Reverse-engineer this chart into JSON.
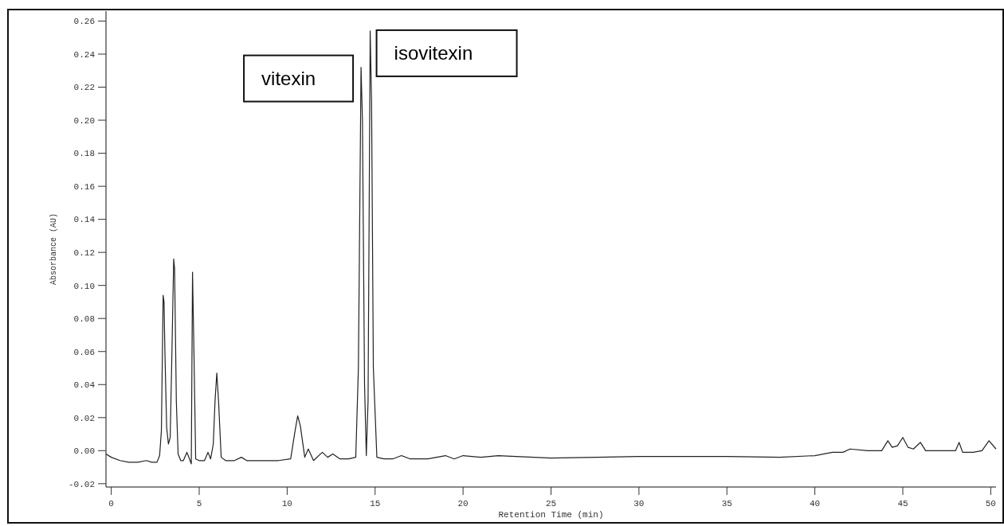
{
  "chart_data": {
    "type": "line",
    "xlabel": "Retention Time (min)",
    "ylabel": "Absorbance (AU)",
    "xlim": [
      -0.3,
      50.3
    ],
    "ylim": [
      -0.022,
      0.266
    ],
    "xticks": [
      0,
      5,
      10,
      15,
      20,
      25,
      30,
      35,
      40,
      45,
      50
    ],
    "yticks": [
      -0.02,
      {
        "value": 0,
        "label": "0.00"
      },
      0.02,
      0.04,
      0.06,
      0.08,
      {
        "value": 0.1,
        "label": "0.10"
      },
      0.12,
      0.14,
      0.16,
      0.18,
      {
        "value": 0.2,
        "label": "0.20"
      },
      0.22,
      0.24,
      0.26
    ],
    "grid": false,
    "marker": "none",
    "line_style": "solid",
    "series": [
      {
        "color": "#222222",
        "x": [
          -0.3,
          0,
          0.5,
          1,
          1.5,
          2,
          2.3,
          2.6,
          2.75,
          2.85,
          2.95,
          3.0,
          3.05,
          3.15,
          3.25,
          3.35,
          3.45,
          3.55,
          3.6,
          3.7,
          3.8,
          3.95,
          4.1,
          4.3,
          4.45,
          4.55,
          4.62,
          4.7,
          4.8,
          5.0,
          5.3,
          5.5,
          5.65,
          5.8,
          5.9,
          6.0,
          6.1,
          6.25,
          6.5,
          7.0,
          7.4,
          7.7,
          8.5,
          9.5,
          10.2,
          10.45,
          10.6,
          10.75,
          11.0,
          11.2,
          11.5,
          12.0,
          12.3,
          12.6,
          13.0,
          13.5,
          13.9,
          14.05,
          14.2,
          14.28,
          14.4,
          14.5,
          14.6,
          14.72,
          14.8,
          14.9,
          15.1,
          15.5,
          16.0,
          16.5,
          17.0,
          18.0,
          19.0,
          19.5,
          20.0,
          21.0,
          22.0,
          25.0,
          30.0,
          35.0,
          38.0,
          40.0,
          41.0,
          41.6,
          42.0,
          43.0,
          43.8,
          44.15,
          44.4,
          44.7,
          45.0,
          45.3,
          45.6,
          46.0,
          46.3,
          47.0,
          48.0,
          48.2,
          48.4,
          49.0,
          49.5,
          49.9,
          50.3
        ],
        "values": [
          -0.002,
          -0.004,
          -0.006,
          -0.007,
          -0.007,
          -0.006,
          -0.007,
          -0.007,
          -0.003,
          0.012,
          0.094,
          0.09,
          0.06,
          0.014,
          0.004,
          0.008,
          0.06,
          0.116,
          0.11,
          0.03,
          -0.002,
          -0.006,
          -0.006,
          -0.001,
          -0.005,
          -0.008,
          0.108,
          0.06,
          -0.005,
          -0.006,
          -0.006,
          -0.001,
          -0.005,
          0.004,
          0.03,
          0.047,
          0.03,
          -0.004,
          -0.006,
          -0.006,
          -0.004,
          -0.006,
          -0.006,
          -0.006,
          -0.005,
          0.012,
          0.021,
          0.015,
          -0.004,
          0.001,
          -0.006,
          -0.001,
          -0.004,
          -0.002,
          -0.005,
          -0.005,
          -0.004,
          0.05,
          0.232,
          0.2,
          0.04,
          -0.003,
          0.03,
          0.254,
          0.21,
          0.05,
          -0.004,
          -0.005,
          -0.005,
          -0.003,
          -0.005,
          -0.005,
          -0.003,
          -0.005,
          -0.003,
          -0.004,
          -0.003,
          -0.0045,
          -0.0035,
          -0.0035,
          -0.004,
          -0.003,
          -0.001,
          -0.001,
          0.001,
          0.0,
          0.0,
          0.006,
          0.002,
          0.003,
          0.008,
          0.002,
          0.001,
          0.005,
          0.0,
          0.0,
          0.0,
          0.005,
          -0.001,
          -0.001,
          0.0,
          0.006,
          0.001
        ]
      }
    ],
    "annotations": [
      {
        "text": "vitexin",
        "x": 14.2,
        "y": 0.232
      },
      {
        "text": "isovitexin",
        "x": 14.72,
        "y": 0.254
      }
    ]
  }
}
